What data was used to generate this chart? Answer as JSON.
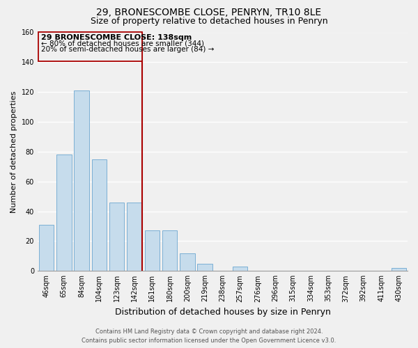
{
  "title": "29, BRONESCOMBE CLOSE, PENRYN, TR10 8LE",
  "subtitle": "Size of property relative to detached houses in Penryn",
  "xlabel": "Distribution of detached houses by size in Penryn",
  "ylabel": "Number of detached properties",
  "bar_labels": [
    "46sqm",
    "65sqm",
    "84sqm",
    "104sqm",
    "123sqm",
    "142sqm",
    "161sqm",
    "180sqm",
    "200sqm",
    "219sqm",
    "238sqm",
    "257sqm",
    "276sqm",
    "296sqm",
    "315sqm",
    "334sqm",
    "353sqm",
    "372sqm",
    "392sqm",
    "411sqm",
    "430sqm"
  ],
  "bar_values": [
    31,
    78,
    121,
    75,
    46,
    46,
    27,
    27,
    12,
    5,
    0,
    3,
    0,
    0,
    0,
    0,
    0,
    0,
    0,
    0,
    2
  ],
  "bar_color": "#c6dcec",
  "bar_edge_color": "#7bafd4",
  "marker_line_index": 5,
  "marker_line_color": "#aa0000",
  "annotation_text_line1": "29 BRONESCOMBE CLOSE: 138sqm",
  "annotation_text_line2": "← 80% of detached houses are smaller (344)",
  "annotation_text_line3": "20% of semi-detached houses are larger (84) →",
  "ylim": [
    0,
    160
  ],
  "yticks": [
    0,
    20,
    40,
    60,
    80,
    100,
    120,
    140,
    160
  ],
  "footer_line1": "Contains HM Land Registry data © Crown copyright and database right 2024.",
  "footer_line2": "Contains public sector information licensed under the Open Government Licence v3.0.",
  "bg_color": "#f0f0f0",
  "grid_color": "#ffffff",
  "title_fontsize": 10,
  "subtitle_fontsize": 9,
  "ylabel_fontsize": 8,
  "xlabel_fontsize": 9,
  "tick_fontsize": 7,
  "annot_fontsize": 8,
  "footer_fontsize": 6
}
